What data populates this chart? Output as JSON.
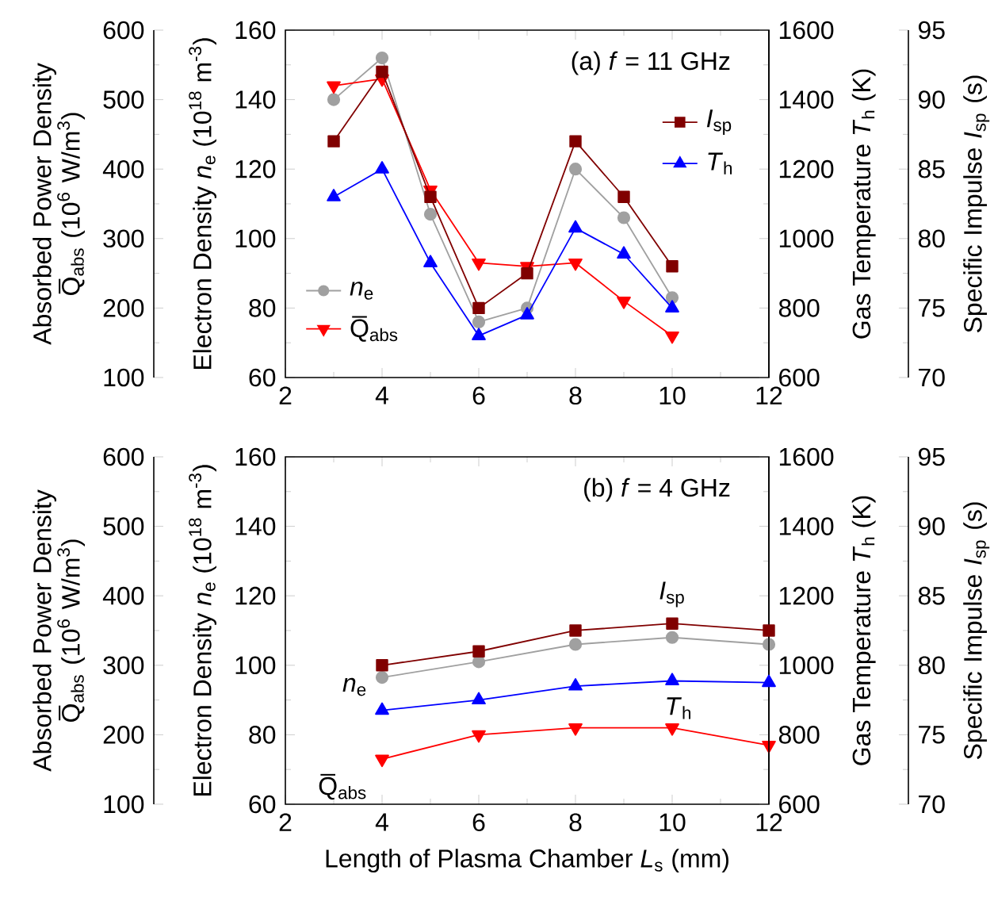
{
  "chart_data": [
    {
      "type": "line",
      "title": "(a) *f* = 11 GHz",
      "ylabel": "Electron Density *n*$_{e}$ (10$^{18}$ m$^{-3}$)",
      "y2label": "Absorbed Power Density Q̅$_{abs}$ (10$^{6}$ W/m$^{3}$)",
      "x": [
        3,
        4,
        5,
        6,
        7,
        8,
        9,
        10
      ],
      "series": [
        {
          "name": "*n*$_{e}$",
          "color": "#a0a0a0",
          "marker": "circle",
          "values": [
            140,
            152,
            107,
            76,
            80,
            120,
            106,
            83
          ]
        },
        {
          "name": "Q̅$_{abs}$",
          "color": "#ff0000",
          "marker": "triangle-down",
          "axis": "y2",
          "values": [
            520,
            530,
            370,
            265,
            260,
            265,
            210,
            160
          ]
        }
      ],
      "xlim": [
        2,
        12
      ],
      "xticks": [
        2,
        4,
        6,
        8,
        10,
        12
      ],
      "ylim": [
        60,
        160
      ],
      "yticks": [
        60,
        80,
        100,
        120,
        140,
        160
      ],
      "y2lim": [
        100,
        600
      ],
      "y2ticks": [
        100,
        200,
        300,
        400,
        500,
        600
      ],
      "legend": "bottom left"
    },
    {
      "type": "line",
      "ylabel": "Gas Temperature *T*$_{h}$ (K)",
      "y2label": "Specific Impulse *I*$_{sp}$ (s)",
      "x": [
        3,
        4,
        5,
        6,
        7,
        8,
        9,
        10
      ],
      "series": [
        {
          "name": "*I*$_{sp}$",
          "color": "#800000",
          "marker": "square",
          "axis": "y2",
          "values": [
            87,
            92,
            83,
            75,
            77.5,
            87,
            83,
            78
          ]
        },
        {
          "name": "*T*$_{h}$",
          "color": "#0000ff",
          "marker": "triangle",
          "values": [
            1120,
            1200,
            930,
            720,
            780,
            1030,
            955,
            800
          ]
        }
      ],
      "xlim": [
        2,
        12
      ],
      "tick_labels": "y",
      "ylim": [
        600,
        1600
      ],
      "yticks": [
        600,
        800,
        1000,
        1200,
        1400,
        1600
      ],
      "y2lim": [
        70,
        95
      ],
      "y2ticks": [
        70,
        75,
        80,
        85,
        90,
        95
      ],
      "legend": "top right"
    },
    {
      "type": "line",
      "title": "(b) *f* = 4 GHz",
      "xlabel": "Length of Plasma Chamber *L*$_{s}$ (mm)",
      "ylabel": "Electron Density *n*$_{e}$ (10$^{18}$ m$^{-3}$)",
      "y2label": "Absorbed Power Density Q̅$_{abs}$ (10$^{6}$ W/m$^{3}$)",
      "x": [
        4,
        6,
        8,
        10,
        12
      ],
      "series": [
        {
          "name": "*n*$_{e}$",
          "color": "#a0a0a0",
          "marker": "circle",
          "values": [
            96.5,
            101,
            106,
            108,
            106
          ]
        },
        {
          "name": "Q̅$_{abs}$",
          "color": "#ff0000",
          "marker": "triangle-down",
          "axis": "y2",
          "values": [
            165,
            200,
            210,
            210,
            185
          ]
        }
      ],
      "xlim": [
        2,
        12
      ],
      "xticks": [
        2,
        4,
        6,
        8,
        10,
        12
      ],
      "ylim": [
        60,
        160
      ],
      "yticks": [
        60,
        80,
        100,
        120,
        140,
        160
      ],
      "y2lim": [
        100,
        600
      ],
      "y2ticks": [
        100,
        200,
        300,
        400,
        500,
        600
      ]
    },
    {
      "type": "line",
      "ylabel": "Gas Temperature *T*$_{h}$ (K)",
      "y2label": "Specific Impulse *I*$_{sp}$ (s)",
      "x": [
        4,
        6,
        8,
        10,
        12
      ],
      "series": [
        {
          "name": "*I*$_{sp}$",
          "color": "#800000",
          "marker": "square",
          "axis": "y2",
          "values": [
            80,
            81,
            82.5,
            83,
            82.5
          ]
        },
        {
          "name": "*T*$_{h}$",
          "color": "#0000ff",
          "marker": "triangle",
          "values": [
            870,
            900,
            940,
            955,
            950
          ]
        }
      ],
      "xlim": [
        2,
        12
      ],
      "tick_labels": "y",
      "ylim": [
        600,
        1600
      ],
      "yticks": [
        600,
        800,
        1000,
        1200,
        1400,
        1600
      ],
      "y2lim": [
        70,
        95
      ],
      "y2ticks": [
        70,
        75,
        80,
        85,
        90,
        95
      ]
    }
  ]
}
